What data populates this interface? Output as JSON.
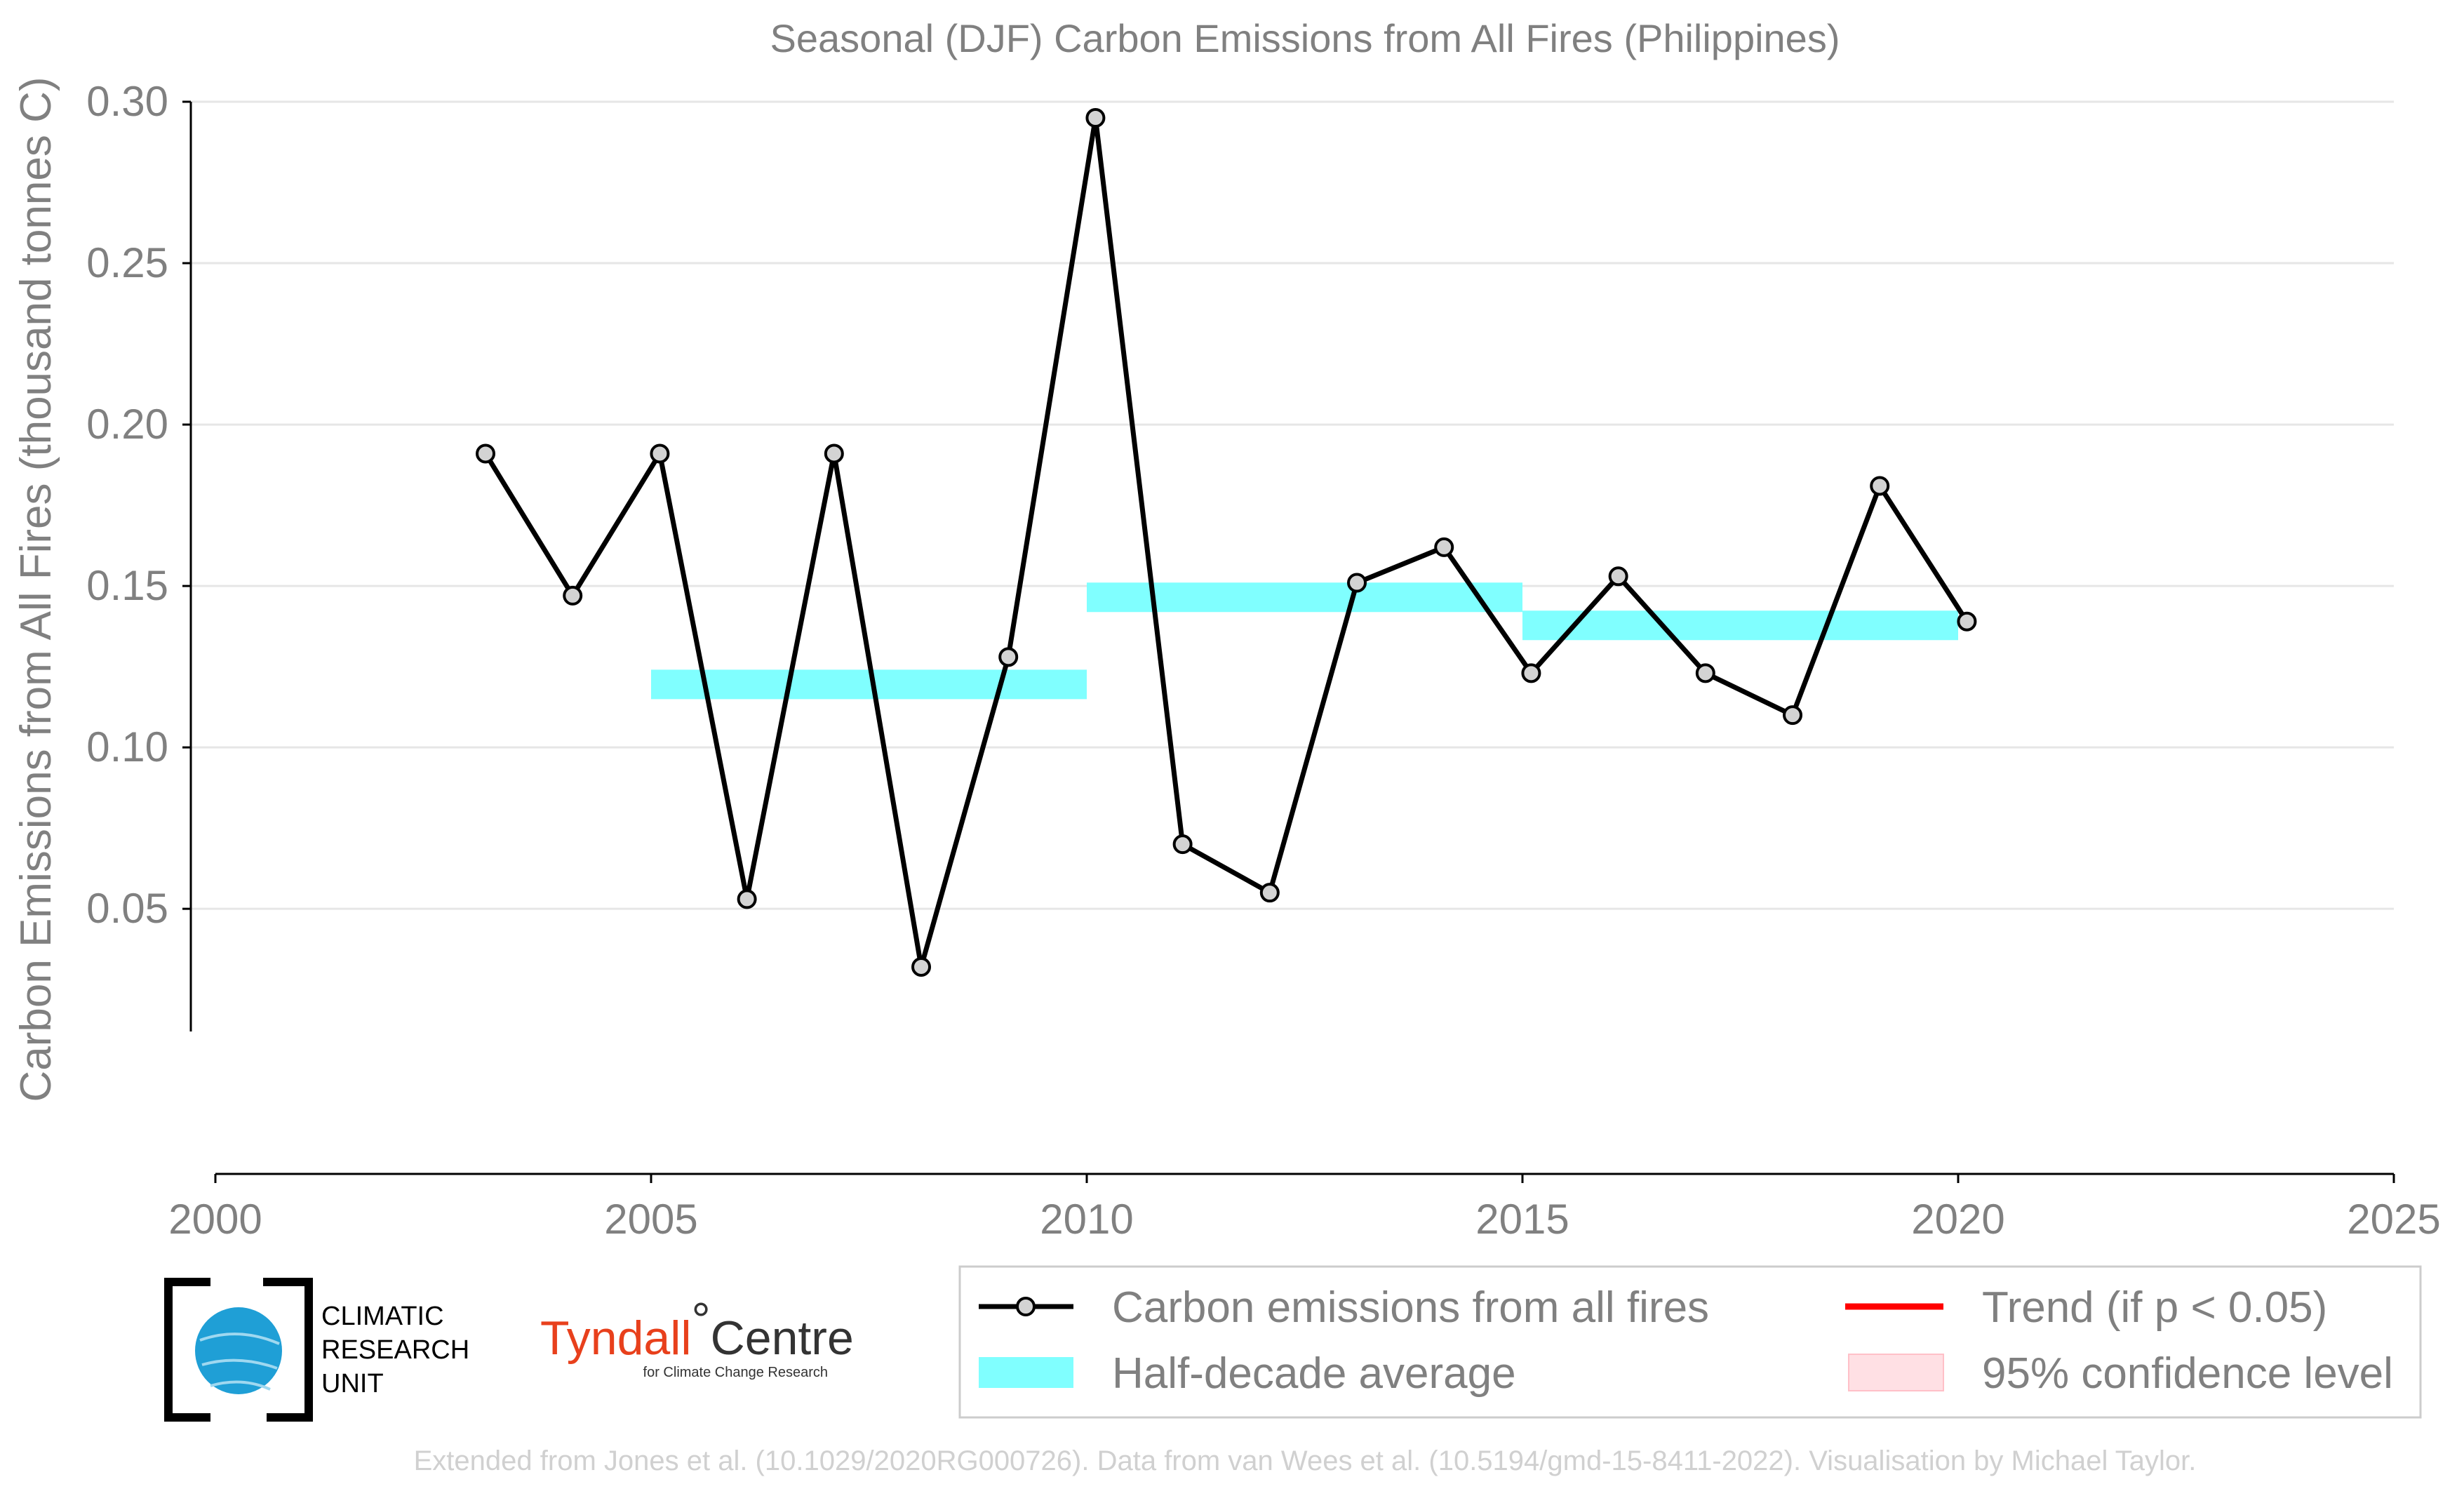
{
  "chart_data": {
    "type": "line",
    "title": "Seasonal (DJF) Carbon Emissions from All Fires (Philippines)",
    "xlabel": "",
    "ylabel": "Carbon Emissions from All Fires (thousand tonnes C)",
    "xlim": [
      2000,
      2025
    ],
    "ylim": [
      0.012,
      0.3
    ],
    "x_ticks": [
      "2000",
      "2005",
      "2010",
      "2015",
      "2020",
      "2025"
    ],
    "y_ticks": [
      "0.05",
      "0.10",
      "0.15",
      "0.20",
      "0.25",
      "0.30"
    ],
    "grid": "horizontal",
    "legend_position": "bottom",
    "series": [
      {
        "name": "Carbon emissions from all fires",
        "color": "#000000",
        "marker_fill": "#d3d3d3",
        "points": [
          {
            "x": 2003.1,
            "y": 0.191
          },
          {
            "x": 2004.1,
            "y": 0.147
          },
          {
            "x": 2005.1,
            "y": 0.191
          },
          {
            "x": 2006.1,
            "y": 0.053
          },
          {
            "x": 2007.1,
            "y": 0.191
          },
          {
            "x": 2008.1,
            "y": 0.032
          },
          {
            "x": 2009.1,
            "y": 0.128
          },
          {
            "x": 2010.1,
            "y": 0.295
          },
          {
            "x": 2011.1,
            "y": 0.07
          },
          {
            "x": 2012.1,
            "y": 0.055
          },
          {
            "x": 2013.1,
            "y": 0.151
          },
          {
            "x": 2014.1,
            "y": 0.162
          },
          {
            "x": 2015.1,
            "y": 0.123
          },
          {
            "x": 2016.1,
            "y": 0.153
          },
          {
            "x": 2017.1,
            "y": 0.123
          },
          {
            "x": 2018.1,
            "y": 0.11
          },
          {
            "x": 2019.1,
            "y": 0.181
          },
          {
            "x": 2020.1,
            "y": 0.139
          }
        ]
      },
      {
        "name": "Half-decade average",
        "color": "#80ffff",
        "segments": [
          {
            "x_start": 2005,
            "x_end": 2010,
            "y": 0.1195
          },
          {
            "x_start": 2010,
            "x_end": 2015,
            "y": 0.1465
          },
          {
            "x_start": 2015,
            "x_end": 2020,
            "y": 0.1378
          }
        ]
      }
    ],
    "legend": [
      {
        "label": "Carbon emissions from all fires",
        "symbol": "line-marker",
        "color": "#000000"
      },
      {
        "label": "Trend (if p < 0.05)",
        "symbol": "line",
        "color": "#ff0000"
      },
      {
        "label": "Half-decade average",
        "symbol": "band",
        "color": "#80ffff"
      },
      {
        "label": "95% confidence level",
        "symbol": "band",
        "color": "#ffe0e4"
      }
    ],
    "footer": "Extended from Jones et al. (10.1029/2020RG000726). Data from van Wees et al. (10.5194/gmd-15-8411-2022). Visualisation by Michael Taylor."
  },
  "logos": {
    "cru": [
      "CLIMATIC",
      "RESEARCH",
      "UNIT"
    ],
    "tyndall_name": "Tyndall",
    "tyndall_degree": "°",
    "tyndall_centre": "Centre",
    "tyndall_sub": "for Climate Change Research"
  }
}
